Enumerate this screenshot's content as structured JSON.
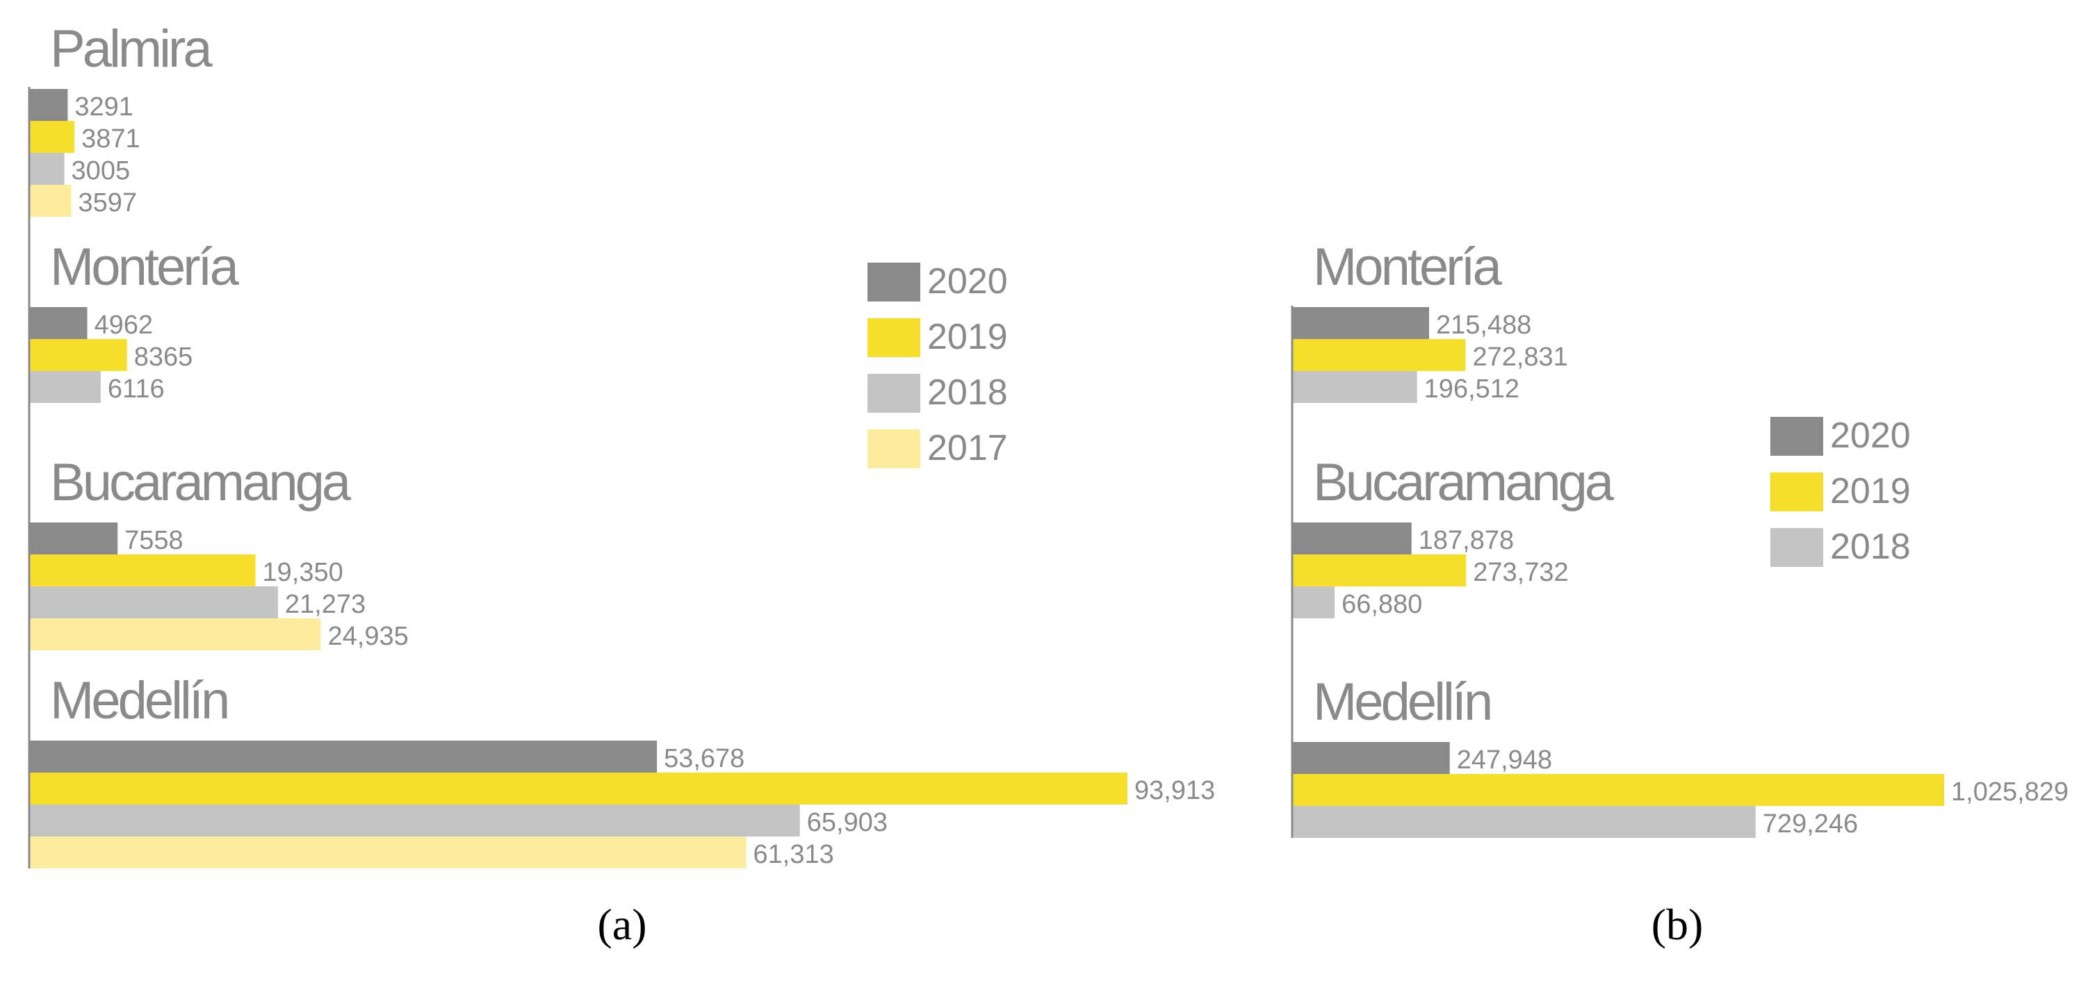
{
  "colors": {
    "2020": "#8a8a8b",
    "2019": "#f5df2a",
    "2018": "#c4c4c5",
    "2017": "#fdec9b",
    "text": "#8a8a8b",
    "axis": "#8a8a8b",
    "panel_label": "#000000"
  },
  "chart_data": [
    {
      "type": "bar",
      "orientation": "horizontal",
      "panel_label": "(a)",
      "title": "",
      "xlim": [
        0,
        93913
      ],
      "legend": [
        "2020",
        "2019",
        "2018",
        "2017"
      ],
      "legend_position": "upper-right",
      "groups": [
        {
          "name": "Palmira",
          "bars": [
            {
              "year": "2020",
              "value": 3291,
              "label": "3291"
            },
            {
              "year": "2019",
              "value": 3871,
              "label": "3871"
            },
            {
              "year": "2018",
              "value": 3005,
              "label": "3005"
            },
            {
              "year": "2017",
              "value": 3597,
              "label": "3597"
            }
          ]
        },
        {
          "name": "Montería",
          "bars": [
            {
              "year": "2020",
              "value": 4962,
              "label": "4962"
            },
            {
              "year": "2019",
              "value": 8365,
              "label": "8365"
            },
            {
              "year": "2018",
              "value": 6116,
              "label": "6116"
            }
          ]
        },
        {
          "name": "Bucaramanga",
          "bars": [
            {
              "year": "2020",
              "value": 7558,
              "label": "7558"
            },
            {
              "year": "2019",
              "value": 19350,
              "label": "19,350"
            },
            {
              "year": "2018",
              "value": 21273,
              "label": "21,273"
            },
            {
              "year": "2017",
              "value": 24935,
              "label": "24,935"
            }
          ]
        },
        {
          "name": "Medellín",
          "bars": [
            {
              "year": "2020",
              "value": 53678,
              "label": "53,678"
            },
            {
              "year": "2019",
              "value": 93913,
              "label": "93,913"
            },
            {
              "year": "2018",
              "value": 65903,
              "label": "65,903"
            },
            {
              "year": "2017",
              "value": 61313,
              "label": "61,313"
            }
          ]
        }
      ]
    },
    {
      "type": "bar",
      "orientation": "horizontal",
      "panel_label": "(b)",
      "title": "",
      "xlim": [
        0,
        1025829
      ],
      "legend": [
        "2020",
        "2019",
        "2018"
      ],
      "legend_position": "center-right",
      "groups": [
        {
          "name": "Montería",
          "bars": [
            {
              "year": "2020",
              "value": 215488,
              "label": "215,488"
            },
            {
              "year": "2019",
              "value": 272831,
              "label": "272,831"
            },
            {
              "year": "2018",
              "value": 196512,
              "label": "196,512"
            }
          ]
        },
        {
          "name": "Bucaramanga",
          "bars": [
            {
              "year": "2020",
              "value": 187878,
              "label": "187,878"
            },
            {
              "year": "2019",
              "value": 273732,
              "label": "273,732"
            },
            {
              "year": "2018",
              "value": 66880,
              "label": "66,880"
            }
          ]
        },
        {
          "name": "Medellín",
          "bars": [
            {
              "year": "2020",
              "value": 247948,
              "label": "247,948"
            },
            {
              "year": "2019",
              "value": 1025829,
              "label": "1,025,829"
            },
            {
              "year": "2018",
              "value": 729246,
              "label": "729,246"
            }
          ]
        }
      ]
    }
  ]
}
